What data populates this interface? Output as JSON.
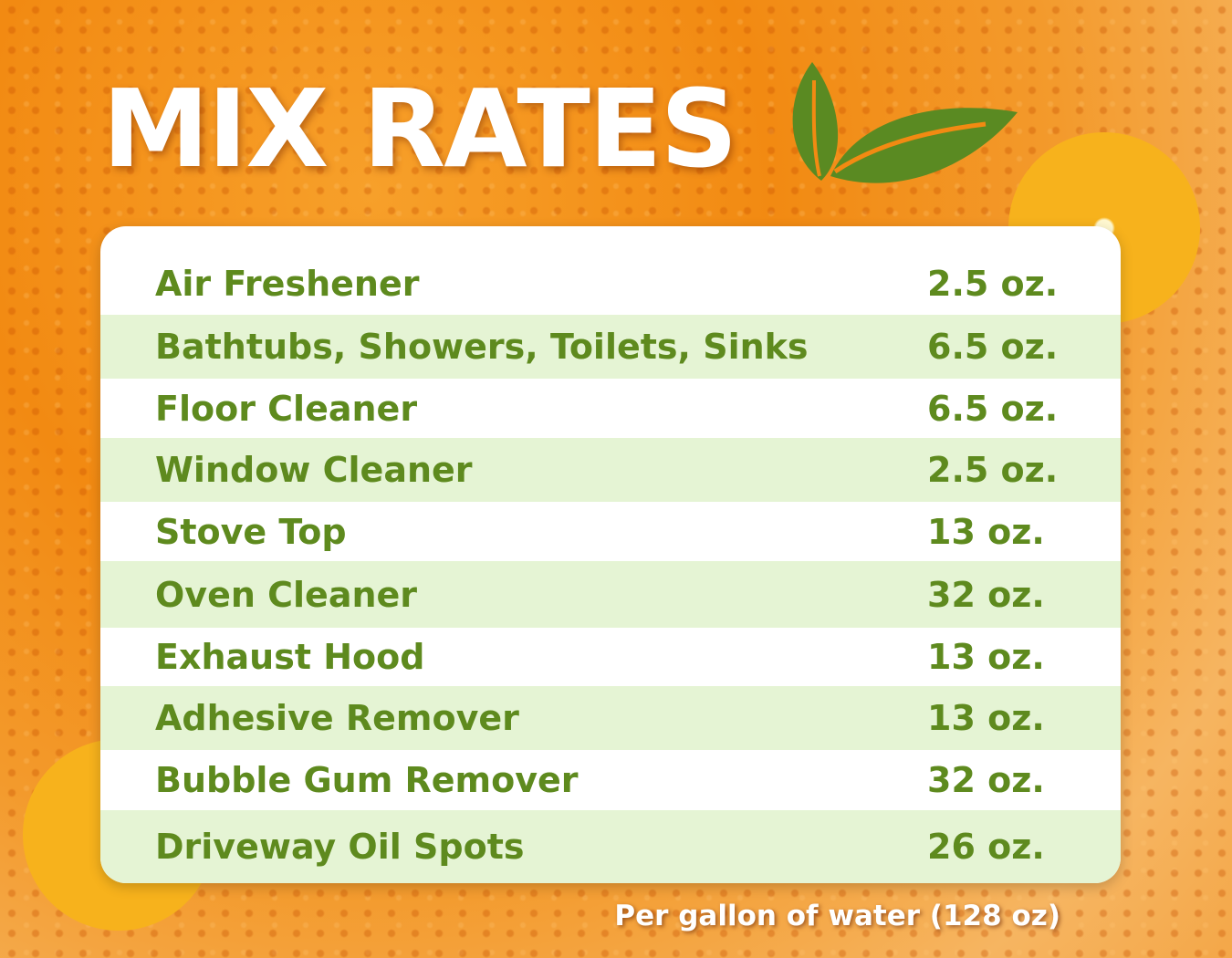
{
  "title": "MIX RATES",
  "colors": {
    "text_green": "#5e8a1e",
    "stripe": "#e5f4d4",
    "leaf": "#5a8a22",
    "background": "#f28a12"
  },
  "icons": [
    "leaf-icon",
    "orange-slice"
  ],
  "rows": [
    {
      "name": "Air Freshener",
      "amount": "2.5 oz."
    },
    {
      "name": "Bathtubs, Showers, Toilets, Sinks",
      "amount": "6.5 oz."
    },
    {
      "name": "Floor Cleaner",
      "amount": "6.5 oz."
    },
    {
      "name": "Window Cleaner",
      "amount": "2.5 oz."
    },
    {
      "name": "Stove Top",
      "amount": "13 oz."
    },
    {
      "name": "Oven Cleaner",
      "amount": "32 oz."
    },
    {
      "name": "Exhaust Hood",
      "amount": "13 oz."
    },
    {
      "name": "Adhesive Remover",
      "amount": "13 oz."
    },
    {
      "name": "Bubble Gum Remover",
      "amount": "32 oz."
    },
    {
      "name": "Driveway Oil Spots",
      "amount": "26 oz."
    }
  ],
  "footnote": "Per gallon of  water (128 oz)"
}
